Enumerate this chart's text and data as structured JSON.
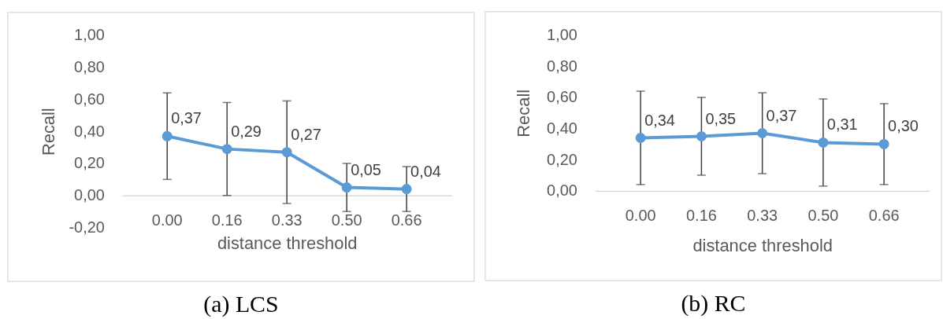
{
  "chart_data": [
    {
      "type": "line",
      "title": "(a) LCS",
      "xlabel": "distance threshold",
      "ylabel": "Recall",
      "categories": [
        "0.00",
        "0.16",
        "0.33",
        "0.50",
        "0.66"
      ],
      "values": [
        0.37,
        0.29,
        0.27,
        0.05,
        0.04
      ],
      "color": "#5b9bd5",
      "errors": [
        0.27,
        0.29,
        0.32,
        0.15,
        0.14
      ],
      "value_labels": [
        "0,37",
        "0,29",
        "0,27",
        "0,05",
        "0,04"
      ],
      "ylim": [
        -0.2,
        1.0
      ],
      "yticks": [
        {
          "value": -0.2,
          "label": "-0,20"
        },
        {
          "value": 0,
          "label": "0,00"
        },
        {
          "value": 0.2,
          "label": "0,20"
        },
        {
          "value": 0.4,
          "label": "0,40"
        },
        {
          "value": 0.6,
          "label": "0,60"
        },
        {
          "value": 0.8,
          "label": "0,80"
        },
        {
          "value": 1.0,
          "label": "1,00"
        }
      ],
      "marker": "circle",
      "line_style": "solid"
    },
    {
      "type": "line",
      "title": "(b) RC",
      "xlabel": "distance threshold",
      "ylabel": "Recall",
      "categories": [
        "0.00",
        "0.16",
        "0.33",
        "0.50",
        "0.66"
      ],
      "values": [
        0.34,
        0.35,
        0.37,
        0.31,
        0.3
      ],
      "color": "#5b9bd5",
      "errors": [
        0.3,
        0.25,
        0.26,
        0.28,
        0.26
      ],
      "value_labels": [
        "0,34",
        "0,35",
        "0,37",
        "0,31",
        "0,30"
      ],
      "ylim": [
        0,
        1.0
      ],
      "yticks": [
        {
          "value": 0,
          "label": "0,00"
        },
        {
          "value": 0.2,
          "label": "0,20"
        },
        {
          "value": 0.4,
          "label": "0,40"
        },
        {
          "value": 0.6,
          "label": "0,60"
        },
        {
          "value": 0.8,
          "label": "0,80"
        },
        {
          "value": 1.0,
          "label": "1,00"
        }
      ],
      "marker": "circle",
      "line_style": "solid"
    }
  ]
}
